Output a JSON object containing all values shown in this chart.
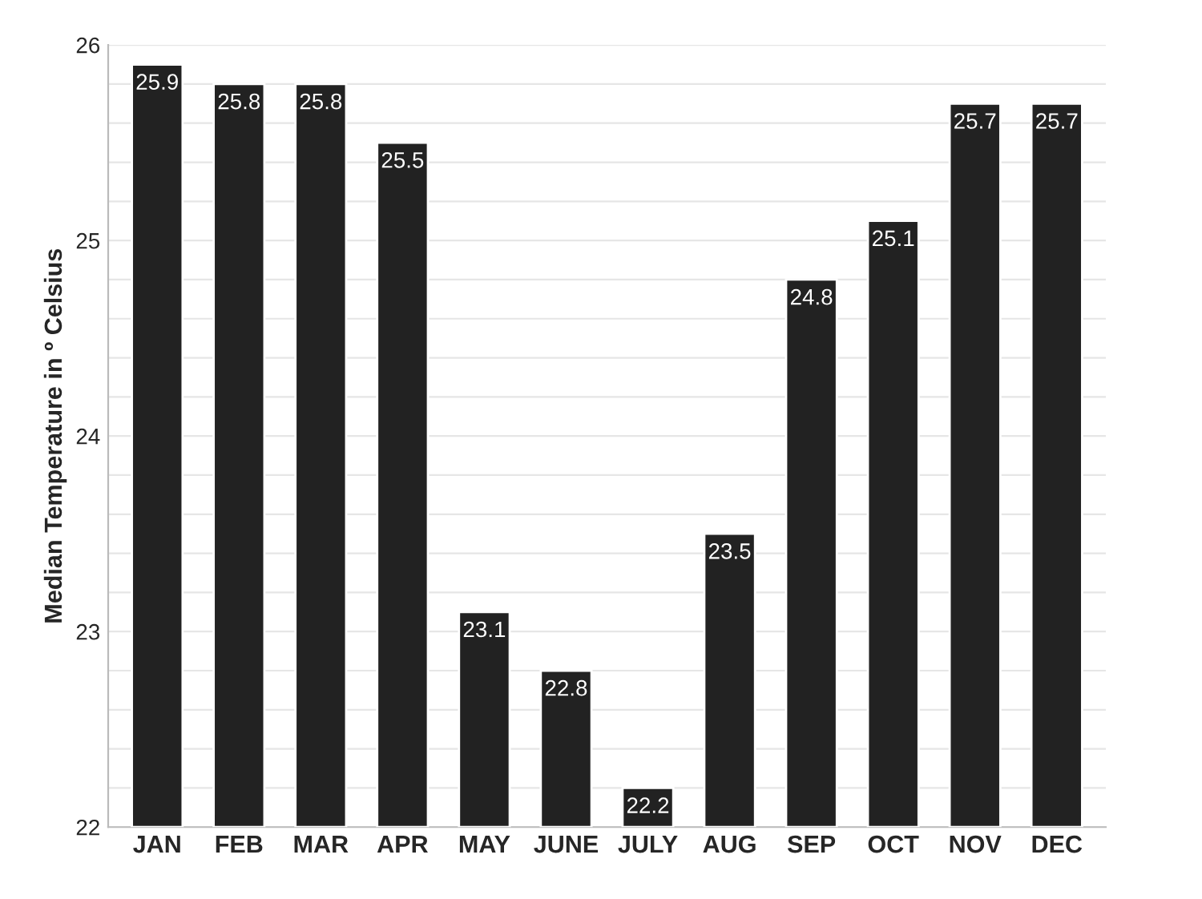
{
  "chart_data": {
    "type": "bar",
    "ylabel": "Median Temperature in º Celsius",
    "categories": [
      "JAN",
      "FEB",
      "MAR",
      "APR",
      "MAY",
      "JUNE",
      "JULY",
      "AUG",
      "SEP",
      "OCT",
      "NOV",
      "DEC"
    ],
    "values": [
      25.9,
      25.8,
      25.8,
      25.5,
      23.1,
      22.8,
      22.2,
      23.5,
      24.8,
      25.1,
      25.7,
      25.7
    ],
    "color": "#222222",
    "ylim": [
      22,
      26
    ],
    "yticks": [
      22,
      {
        "value": 22.2,
        "label": null
      },
      {
        "value": 22.4,
        "label": null
      },
      {
        "value": 22.6,
        "label": null
      },
      {
        "value": 22.8,
        "label": null
      },
      23,
      {
        "value": 23.2,
        "label": null
      },
      {
        "value": 23.4,
        "label": null
      },
      {
        "value": 23.6,
        "label": null
      },
      {
        "value": 23.8,
        "label": null
      },
      24,
      {
        "value": 24.2,
        "label": null
      },
      {
        "value": 24.4,
        "label": null
      },
      {
        "value": 24.6,
        "label": null
      },
      {
        "value": 24.8,
        "label": null
      },
      25,
      {
        "value": 25.2,
        "label": null
      },
      {
        "value": 25.4,
        "label": null
      },
      {
        "value": 25.6,
        "label": null
      },
      {
        "value": 25.8,
        "label": null
      },
      26
    ],
    "grid": "y",
    "data_labels": true
  }
}
